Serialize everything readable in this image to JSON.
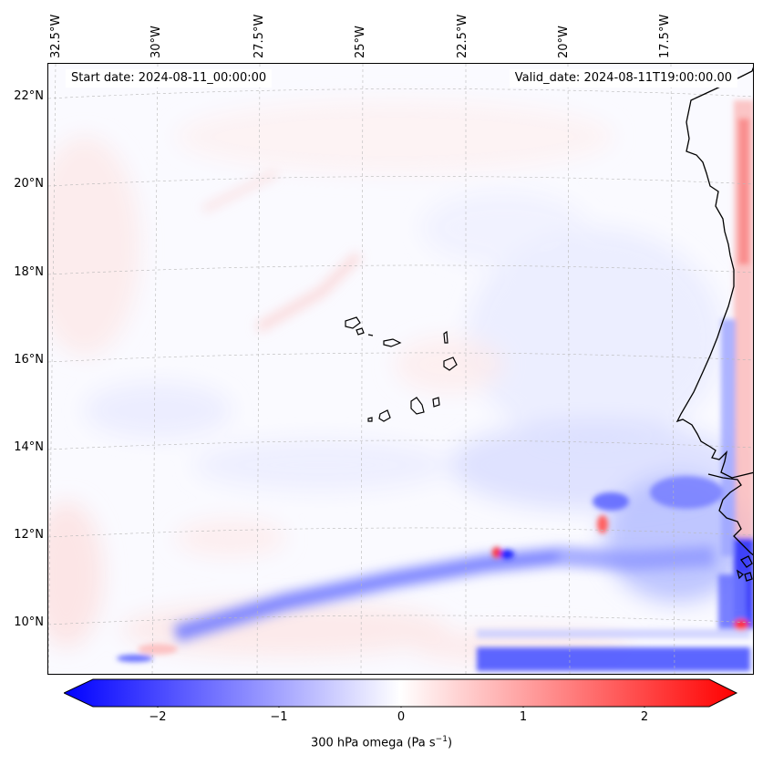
{
  "info": {
    "start_date": "Start date: 2024-08-11_00:00:00",
    "valid_date": "Valid_date: 2024-08-11T19:00:00.00"
  },
  "axes": {
    "lon_ticks": [
      "32.5°W",
      "30°W",
      "27.5°W",
      "25°W",
      "22.5°W",
      "20°W",
      "17.5°W"
    ],
    "lat_ticks": [
      "22°N",
      "20°N",
      "18°N",
      "16°N",
      "14°N",
      "12°N",
      "10°N"
    ]
  },
  "colorbar": {
    "label_prefix": "300 hPa omega (Pa s",
    "label_exp": "−1",
    "label_suffix": ")",
    "ticks": [
      "−2",
      "−1",
      "0",
      "1",
      "2"
    ],
    "range": [
      -2.5,
      2.5
    ],
    "colors": {
      "negative": "#0000ff",
      "zero": "#ffffff",
      "positive": "#ff0000"
    }
  },
  "map": {
    "field": "300 hPa omega",
    "extent_lon": [
      -32.8,
      -16.0
    ],
    "extent_lat": [
      8.8,
      22.8
    ],
    "colormap": "bwr",
    "features": [
      "Cabo Verde islands",
      "West African coastline"
    ]
  }
}
